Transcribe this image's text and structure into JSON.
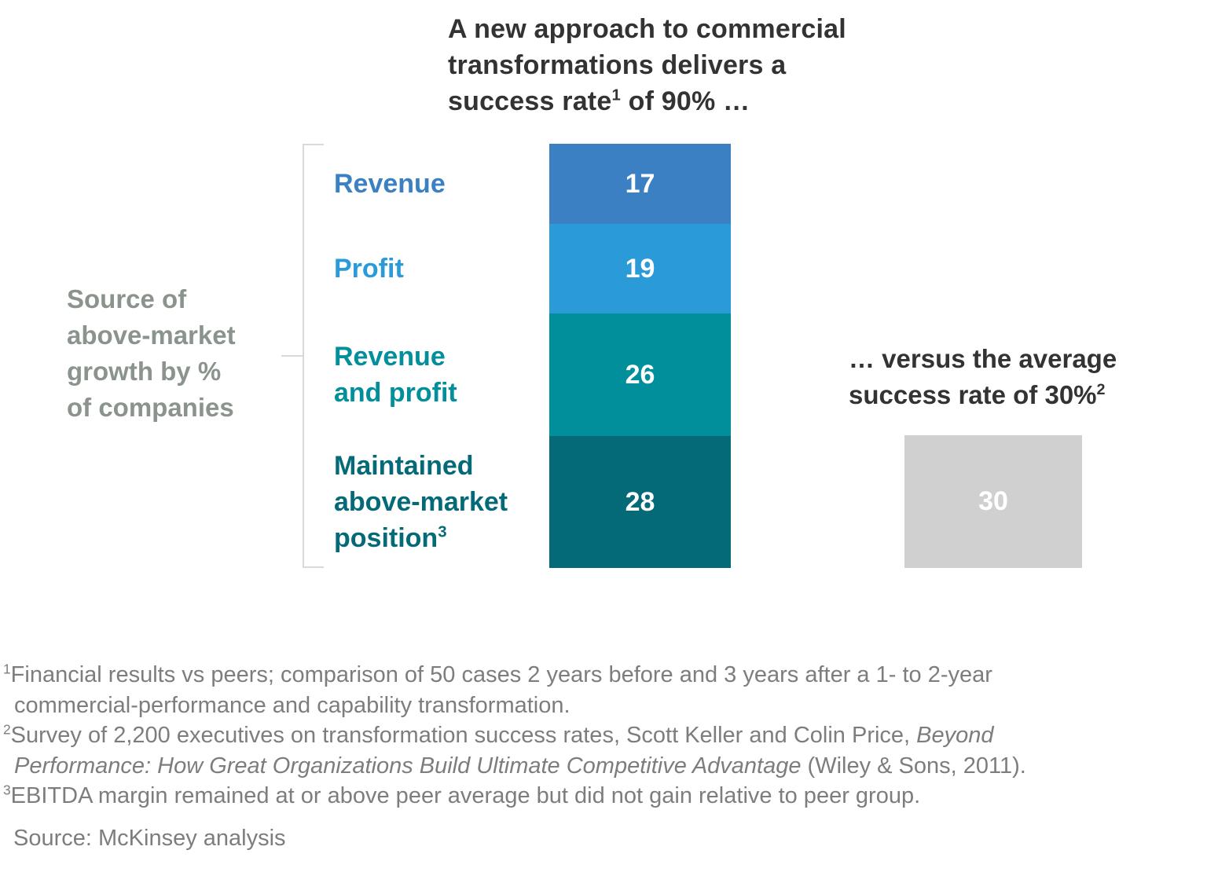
{
  "title": {
    "text": "A new approach to commercial transformations delivers a success rate of 90% …",
    "lines": [
      [
        {
          "text": "A new approach to commercial"
        }
      ],
      [
        {
          "text": "transformations delivers a"
        }
      ],
      [
        {
          "text": "success rate"
        },
        {
          "sup": "1"
        },
        {
          "text": " of 90% …"
        }
      ]
    ]
  },
  "side_label": {
    "text": "Source of above-market growth by % of companies",
    "lines": [
      "Source of",
      "above-market",
      "growth by %",
      "of companies"
    ],
    "color": "#8A948C"
  },
  "right_heading": {
    "text": "… versus the average success rate of 30%",
    "lines": [
      [
        {
          "text": "… versus the average"
        }
      ],
      [
        {
          "text": "success rate of 30%"
        },
        {
          "sup": "2"
        }
      ]
    ]
  },
  "chart_data": {
    "type": "bar",
    "stacked": true,
    "title": "A new approach to commercial transformations delivers a success rate of 90% …",
    "unit_label": "Source of above-market growth by % of companies",
    "categories": [
      "Revenue",
      "Profit",
      "Revenue and profit",
      "Maintained above-market position"
    ],
    "values": [
      17,
      19,
      26,
      28
    ],
    "total": 90,
    "axis_total": 90,
    "colors": [
      "#3A80C3",
      "#2A9AD9",
      "#008F9B",
      "#056A78"
    ],
    "value_label_color": "#FFFFFF",
    "label_lines": [
      [
        [
          {
            "text": "Revenue"
          }
        ]
      ],
      [
        [
          {
            "text": "Profit"
          }
        ]
      ],
      [
        [
          {
            "text": "Revenue"
          }
        ],
        [
          {
            "text": "and profit"
          }
        ]
      ],
      [
        [
          {
            "text": "Maintained"
          }
        ],
        [
          {
            "text": "above-market"
          }
        ],
        [
          {
            "text": "position"
          },
          {
            "sup": "3"
          }
        ]
      ]
    ],
    "comparison": {
      "heading": "… versus the average success rate of 30%",
      "value": 30,
      "color": "#D0D0D0"
    },
    "legend": false,
    "grid": false
  },
  "footnotes": [
    {
      "lines": [
        [
          {
            "sup": "1"
          },
          {
            "text": "Financial results vs peers; comparison of 50 cases 2 years before and 3 years after a 1- to 2-year"
          }
        ],
        [
          {
            "text": "commercial-performance and capability transformation."
          }
        ]
      ]
    },
    {
      "lines": [
        [
          {
            "sup": "2"
          },
          {
            "text": "Survey of 2,200 executives on transformation success rates, Scott Keller and Colin Price, "
          },
          {
            "text": "Beyond",
            "italic": true
          }
        ],
        [
          {
            "text": "Performance: How Great Organizations Build Ultimate Competitive Advantage",
            "italic": true
          },
          {
            "text": " (Wiley & Sons, 2011)."
          }
        ]
      ]
    },
    {
      "lines": [
        [
          {
            "sup": "3"
          },
          {
            "text": "EBITDA margin remained at or above peer average but did not gain relative to peer group."
          }
        ]
      ]
    }
  ],
  "source": "Source: McKinsey analysis"
}
